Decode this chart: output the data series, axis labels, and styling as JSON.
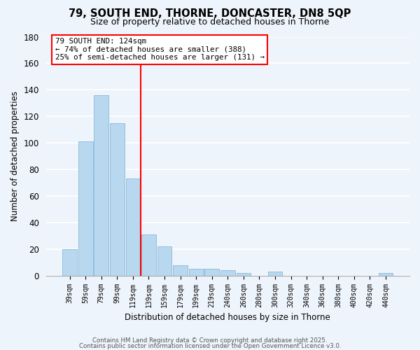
{
  "title": "79, SOUTH END, THORNE, DONCASTER, DN8 5QP",
  "subtitle": "Size of property relative to detached houses in Thorne",
  "xlabel": "Distribution of detached houses by size in Thorne",
  "ylabel": "Number of detached properties",
  "bar_labels": [
    "39sqm",
    "59sqm",
    "79sqm",
    "99sqm",
    "119sqm",
    "139sqm",
    "159sqm",
    "179sqm",
    "199sqm",
    "219sqm",
    "240sqm",
    "260sqm",
    "280sqm",
    "300sqm",
    "320sqm",
    "340sqm",
    "360sqm",
    "380sqm",
    "400sqm",
    "420sqm",
    "440sqm"
  ],
  "bar_values": [
    20,
    101,
    136,
    115,
    73,
    31,
    22,
    8,
    5,
    5,
    4,
    2,
    0,
    3,
    0,
    0,
    0,
    0,
    0,
    0,
    2
  ],
  "bar_color": "#b8d8f0",
  "bar_edge_color": "#8ab8d8",
  "vline_color": "red",
  "vline_x_idx": 4,
  "annotation_title": "79 SOUTH END: 124sqm",
  "annotation_line1": "← 74% of detached houses are smaller (388)",
  "annotation_line2": "25% of semi-detached houses are larger (131) →",
  "ylim": [
    0,
    180
  ],
  "yticks": [
    0,
    20,
    40,
    60,
    80,
    100,
    120,
    140,
    160,
    180
  ],
  "bg_color": "#eef4fb",
  "grid_color": "white",
  "footer1": "Contains HM Land Registry data © Crown copyright and database right 2025.",
  "footer2": "Contains public sector information licensed under the Open Government Licence v3.0."
}
